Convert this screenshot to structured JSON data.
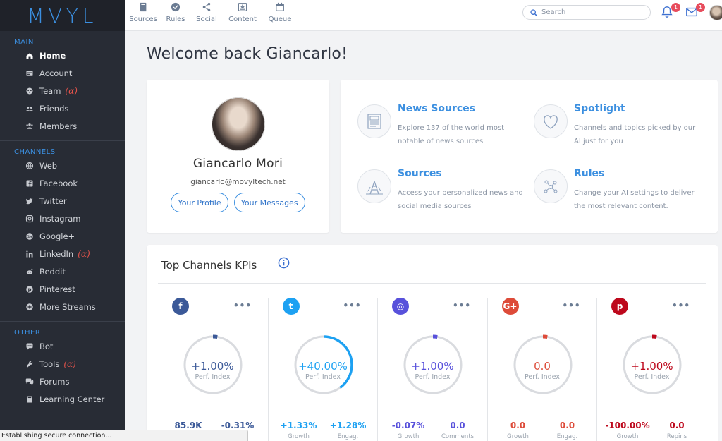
{
  "app": {
    "logo": "MVYL"
  },
  "sidebar": {
    "sections": [
      {
        "title": "MAIN",
        "items": [
          {
            "label": "Home",
            "icon": "home-icon",
            "active": true
          },
          {
            "label": "Account",
            "icon": "account-icon"
          },
          {
            "label": "Team",
            "icon": "team-icon",
            "alpha": "(α)"
          },
          {
            "label": "Friends",
            "icon": "friends-icon"
          },
          {
            "label": "Members",
            "icon": "members-icon"
          }
        ]
      },
      {
        "title": "CHANNELS",
        "items": [
          {
            "label": "Web",
            "icon": "web-icon"
          },
          {
            "label": "Facebook",
            "icon": "facebook-icon"
          },
          {
            "label": "Twitter",
            "icon": "twitter-icon"
          },
          {
            "label": "Instagram",
            "icon": "instagram-icon"
          },
          {
            "label": "Google+",
            "icon": "google-plus-icon"
          },
          {
            "label": "LinkedIn",
            "icon": "linkedin-icon",
            "alpha": "(α)"
          },
          {
            "label": "Reddit",
            "icon": "reddit-icon"
          },
          {
            "label": "Pinterest",
            "icon": "pinterest-icon"
          },
          {
            "label": "More Streams",
            "icon": "plus-circle-icon"
          }
        ]
      },
      {
        "title": "OTHER",
        "items": [
          {
            "label": "Bot",
            "icon": "chat-bubble-icon"
          },
          {
            "label": "Tools",
            "icon": "wrench-icon",
            "alpha": "(α)"
          },
          {
            "label": "Forums",
            "icon": "forums-icon"
          },
          {
            "label": "Learning Center",
            "icon": "book-icon"
          }
        ]
      }
    ]
  },
  "topnav": {
    "items": [
      {
        "label": "Sources",
        "icon": "book-icon"
      },
      {
        "label": "Rules",
        "icon": "check-circle-icon"
      },
      {
        "label": "Social",
        "icon": "share-icon"
      },
      {
        "label": "Content",
        "icon": "download-box-icon"
      },
      {
        "label": "Queue",
        "icon": "calendar-icon"
      }
    ],
    "search_placeholder": "Search",
    "notifications_count": "1",
    "messages_count": "1"
  },
  "main": {
    "welcome": "Welcome back Giancarlo!",
    "profile": {
      "name": "Giancarlo Mori",
      "email": "giancarlo@movyltech.net",
      "profile_button": "Your Profile",
      "messages_button": "Your Messages"
    },
    "features": [
      {
        "title": "News Sources",
        "desc": "Explore 137 of the world most notable of news sources",
        "icon": "newspaper-icon"
      },
      {
        "title": "Spotlight",
        "desc": "Channels and topics picked by our AI just for you",
        "icon": "heart-icon"
      },
      {
        "title": "Sources",
        "desc": "Access your personalized news and social media sources",
        "icon": "radio-tower-icon"
      },
      {
        "title": "Rules",
        "desc": "Change your AI settings to deliver the most relevant content.",
        "icon": "network-icon"
      }
    ],
    "kpi": {
      "title": "Top Channels KPIs",
      "gauge_label": "Perf. Index",
      "channels": [
        {
          "name": "facebook",
          "icon": "facebook-icon",
          "glyph": "f",
          "color": "#3b5998",
          "value": "+1.00%",
          "fill": 0.01,
          "value_color": "#3b5998",
          "stats": [
            {
              "value": "85.9K",
              "label": ""
            },
            {
              "value": "-0.31%",
              "label": ""
            }
          ]
        },
        {
          "name": "twitter",
          "icon": "twitter-icon",
          "glyph": "t",
          "color": "#1da1f2",
          "value": "+40.00%",
          "fill": 0.4,
          "value_color": "#1da1f2",
          "stats": [
            {
              "value": "+1.33%",
              "label": "Growth"
            },
            {
              "value": "+1.28%",
              "label": "Engag."
            }
          ]
        },
        {
          "name": "instagram",
          "icon": "instagram-icon",
          "glyph": "◎",
          "color": "#5851db",
          "value": "+1.00%",
          "fill": 0.01,
          "value_color": "#5851db",
          "stats": [
            {
              "value": "-0.07%",
              "label": "Growth"
            },
            {
              "value": "0.0",
              "label": "Comments"
            }
          ]
        },
        {
          "name": "google-plus",
          "icon": "google-plus-icon",
          "glyph": "G+",
          "color": "#dd4b39",
          "value": "0.0",
          "fill": 0,
          "value_color": "#dd4b39",
          "stats": [
            {
              "value": "0.0",
              "label": "Growth"
            },
            {
              "value": "0.0",
              "label": "Engag."
            }
          ]
        },
        {
          "name": "pinterest",
          "icon": "pinterest-icon",
          "glyph": "p",
          "color": "#bd081c",
          "value": "+1.00%",
          "fill": 0.01,
          "value_color": "#bd081c",
          "stats": [
            {
              "value": "-100.00%",
              "label": "Growth"
            },
            {
              "value": "0.0",
              "label": "Repins"
            }
          ]
        }
      ]
    }
  },
  "status_bar": "Establishing secure connection..."
}
